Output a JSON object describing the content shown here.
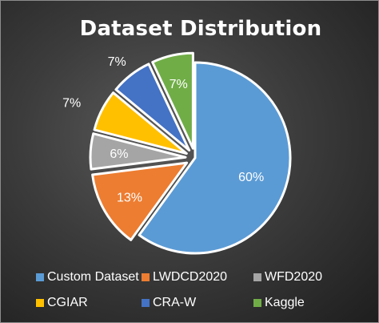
{
  "chart_data": {
    "type": "pie",
    "title": "Dataset Distribution",
    "slices": [
      {
        "label": "Custom Dataset",
        "value": 60,
        "data_label": "60%",
        "color": "#5b9bd5",
        "label_color": "#ffffff",
        "exploded": false
      },
      {
        "label": "LWDCD2020",
        "value": 13,
        "data_label": "13%",
        "color": "#ed7d31",
        "label_color": "#ffffff",
        "exploded": true
      },
      {
        "label": "WFD2020",
        "value": 6,
        "data_label": "6%",
        "color": "#a5a5a5",
        "label_color": "#ffffff",
        "exploded": true
      },
      {
        "label": "CGIAR",
        "value": 7,
        "data_label": "7%",
        "color": "#ffc000",
        "label_color": "#ffffff",
        "exploded": true
      },
      {
        "label": "CRA-W",
        "value": 7,
        "data_label": "7%",
        "color": "#4472c4",
        "label_color": "#ffffff",
        "exploded": true
      },
      {
        "label": "Kaggle",
        "value": 7,
        "data_label": "7%",
        "color": "#70ad47",
        "label_color": "#ffffff",
        "exploded": true
      }
    ],
    "legend_position": "bottom",
    "background": "#2f2f2f"
  }
}
